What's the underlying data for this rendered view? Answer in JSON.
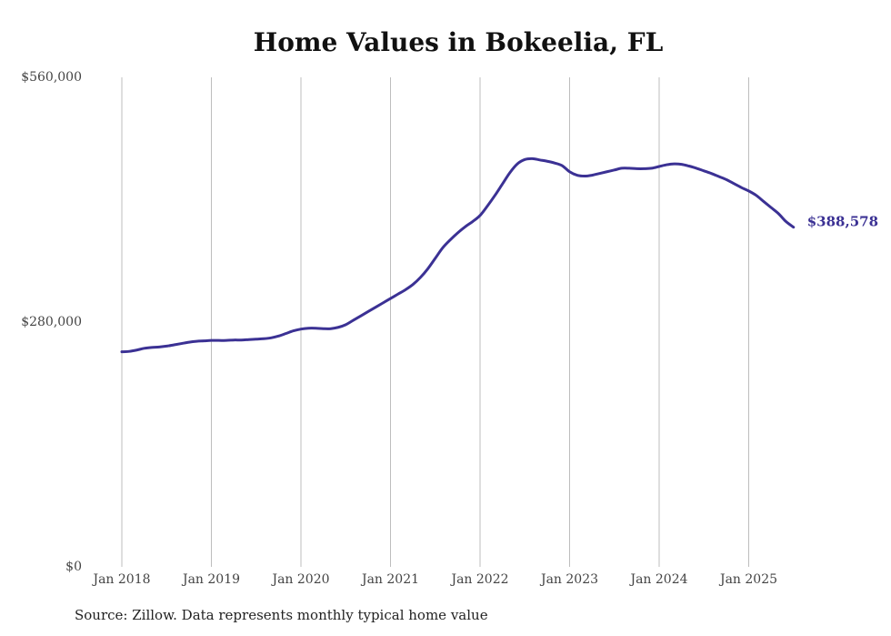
{
  "chart_data": {
    "type": "line",
    "title": "Home Values in Bokeelia, FL",
    "xlabel": "",
    "ylabel": "",
    "y_ticks": [
      "$0",
      "$280,000",
      "$560,000"
    ],
    "y_tick_values": [
      0,
      280000,
      560000
    ],
    "ylim": [
      0,
      560000
    ],
    "x_ticks": [
      "Jan 2018",
      "Jan 2019",
      "Jan 2020",
      "Jan 2021",
      "Jan 2022",
      "Jan 2023",
      "Jan 2024",
      "Jan 2025"
    ],
    "xlim": [
      "2018-01",
      "2025-07"
    ],
    "grid": "vertical",
    "end_label": "$388,578",
    "line_color": "#3b3194",
    "series": [
      {
        "x": [
          "2018-01",
          "2018-02",
          "2018-03",
          "2018-04",
          "2018-05",
          "2018-06",
          "2018-07",
          "2018-08",
          "2018-09",
          "2018-10",
          "2018-11",
          "2018-12",
          "2019-01",
          "2019-02",
          "2019-03",
          "2019-04",
          "2019-05",
          "2019-06",
          "2019-07",
          "2019-08",
          "2019-09",
          "2019-10",
          "2019-11",
          "2019-12",
          "2020-01",
          "2020-02",
          "2020-03",
          "2020-04",
          "2020-05",
          "2020-06",
          "2020-07",
          "2020-08",
          "2020-09",
          "2020-10",
          "2020-11",
          "2020-12",
          "2021-01",
          "2021-02",
          "2021-03",
          "2021-04",
          "2021-05",
          "2021-06",
          "2021-07",
          "2021-08",
          "2021-09",
          "2021-10",
          "2021-11",
          "2021-12",
          "2022-01",
          "2022-02",
          "2022-03",
          "2022-04",
          "2022-05",
          "2022-06",
          "2022-07",
          "2022-08",
          "2022-09",
          "2022-10",
          "2022-11",
          "2022-12",
          "2023-01",
          "2023-02",
          "2023-03",
          "2023-04",
          "2023-05",
          "2023-06",
          "2023-07",
          "2023-08",
          "2023-09",
          "2023-10",
          "2023-11",
          "2023-12",
          "2024-01",
          "2024-02",
          "2024-03",
          "2024-04",
          "2024-05",
          "2024-06",
          "2024-07",
          "2024-08",
          "2024-09",
          "2024-10",
          "2024-11",
          "2024-12",
          "2025-01",
          "2025-02",
          "2025-03",
          "2025-04",
          "2025-05",
          "2025-06",
          "2025-07"
        ],
        "values": [
          246000,
          246500,
          248000,
          250000,
          251000,
          251500,
          252500,
          254000,
          255500,
          257000,
          258000,
          258500,
          259000,
          259000,
          259000,
          259500,
          259500,
          260000,
          260500,
          261000,
          262000,
          264000,
          267000,
          270000,
          272000,
          273000,
          273000,
          272500,
          272500,
          274000,
          277000,
          282000,
          287000,
          292000,
          297000,
          302000,
          307000,
          312000,
          317000,
          323000,
          331000,
          341000,
          353000,
          365000,
          374000,
          382000,
          389000,
          395000,
          402000,
          413000,
          425000,
          438000,
          451000,
          461000,
          466000,
          467000,
          465500,
          464000,
          462000,
          459000,
          452000,
          448000,
          447000,
          448000,
          450000,
          452000,
          454000,
          456000,
          456000,
          455500,
          455500,
          456000,
          458000,
          460000,
          461000,
          460500,
          458500,
          456000,
          453000,
          450000,
          446500,
          443000,
          438500,
          434000,
          430000,
          425000,
          418000,
          411000,
          404000,
          395000,
          388578
        ]
      }
    ]
  },
  "source": "Source: Zillow. Data represents monthly typical home value"
}
